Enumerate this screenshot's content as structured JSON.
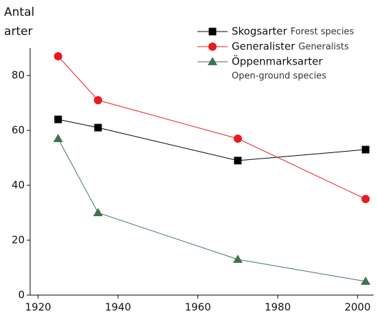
{
  "chart_data": {
    "type": "line",
    "ylabel": [
      "Antal",
      "arter"
    ],
    "x": [
      1925,
      1935,
      1970,
      2002
    ],
    "series": [
      {
        "name": "Skogsarter",
        "translation": "Forest species",
        "color": "#000000",
        "marker": "square",
        "values": [
          64,
          61,
          49,
          53
        ]
      },
      {
        "name": "Generalister",
        "translation": "Generalists",
        "color": "#e8191f",
        "marker": "circle",
        "values": [
          87,
          71,
          57,
          35
        ]
      },
      {
        "name": "Öppenmarksarter",
        "translation": "Open-ground species",
        "color": "#3f7350",
        "marker": "triangle",
        "values": [
          57,
          30,
          13,
          5
        ]
      }
    ],
    "xlim": [
      1918,
      2004
    ],
    "xticks": [
      1920,
      1940,
      1960,
      1980,
      2000
    ],
    "ylim": [
      0,
      90
    ],
    "yticks": [
      0,
      20,
      40,
      60,
      80
    ],
    "grid": false,
    "legend": "top-right"
  }
}
